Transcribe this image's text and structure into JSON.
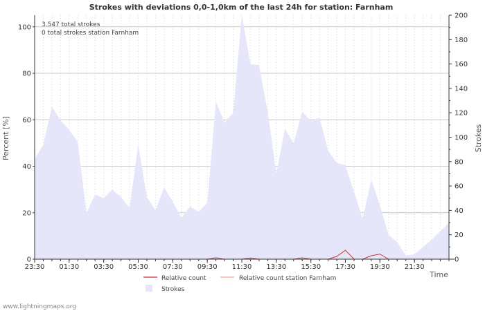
{
  "chart_data": {
    "type": "area",
    "title": "Strokes with deviations 0,0-1,0km of the last 24h for station: Farnham",
    "notes": [
      "3.547 total strokes",
      "0 total strokes station Farnham"
    ],
    "xlabel": "Time",
    "ylabel_left": "Percent   [%]",
    "ylabel_right": "Strokes",
    "ylim_left": [
      0,
      105
    ],
    "ylim_right": [
      0,
      200
    ],
    "yticks_left": [
      0,
      20,
      40,
      60,
      80,
      100
    ],
    "yticks_right": [
      0,
      20,
      40,
      60,
      80,
      100,
      120,
      140,
      160,
      180,
      200
    ],
    "x_range": [
      0,
      24
    ],
    "xticks": [
      {
        "t": 0,
        "label": "23:30"
      },
      {
        "t": 2,
        "label": "01:30"
      },
      {
        "t": 4,
        "label": "03:30"
      },
      {
        "t": 6,
        "label": "05:30"
      },
      {
        "t": 8,
        "label": "07:30"
      },
      {
        "t": 10,
        "label": "09:30"
      },
      {
        "t": 12,
        "label": "11:30"
      },
      {
        "t": 14,
        "label": "13:30"
      },
      {
        "t": 16,
        "label": "15:30"
      },
      {
        "t": 18,
        "label": "17:30"
      },
      {
        "t": 20,
        "label": "19:30"
      },
      {
        "t": 22,
        "label": "21:30"
      }
    ],
    "series": [
      {
        "name": "Strokes",
        "axis": "right",
        "color": "#e6e6fa",
        "x": [
          0,
          0.5,
          1,
          1.5,
          2,
          2.5,
          3,
          3.5,
          4,
          4.5,
          5,
          5.5,
          6,
          6.5,
          7,
          7.5,
          8,
          8.5,
          9,
          9.5,
          10,
          10.5,
          11,
          11.5,
          12,
          12.5,
          13,
          13.5,
          14,
          14.5,
          15,
          15.5,
          16,
          16.5,
          17,
          17.5,
          18,
          18.5,
          19,
          19.5,
          20,
          20.5,
          21,
          21.5,
          22,
          22.5,
          23,
          23.5,
          24
        ],
        "values": [
          82,
          94,
          125,
          114,
          106,
          96,
          38,
          53,
          50,
          57,
          51,
          42,
          94,
          51,
          40,
          59,
          47,
          34,
          43,
          39,
          46,
          129,
          112,
          120,
          200,
          160,
          159,
          121,
          70,
          107,
          95,
          121,
          113,
          116,
          89,
          79,
          77,
          55,
          33,
          65,
          44,
          20,
          14,
          3,
          4,
          10,
          16,
          23,
          30
        ]
      },
      {
        "name": "Relative count",
        "axis": "left",
        "color": "#cc3333",
        "x": [
          0,
          9.5,
          10,
          10.5,
          11,
          12,
          12.5,
          13,
          15,
          15.5,
          16,
          17,
          17.5,
          18,
          18.5,
          19,
          19.5,
          20,
          20.5,
          21,
          24
        ],
        "values": [
          0,
          0,
          0,
          0.6,
          0,
          0,
          0.5,
          0,
          0,
          0.6,
          0,
          0,
          1.2,
          3.8,
          0,
          0,
          1.5,
          2.2,
          0,
          0,
          0
        ]
      },
      {
        "name": "Relative count station Farnham",
        "axis": "left",
        "color": "#f0a0a0",
        "x": [
          0,
          24
        ],
        "values": [
          0,
          0
        ]
      }
    ],
    "legend": [
      {
        "label": "Relative count",
        "type": "line",
        "color": "#cc3333"
      },
      {
        "label": "Relative count station Farnham",
        "type": "line",
        "color": "#f0a0a0"
      },
      {
        "label": "Strokes",
        "type": "area",
        "color": "#e6e6fa"
      }
    ],
    "credit": "www.lightningmaps.org"
  }
}
